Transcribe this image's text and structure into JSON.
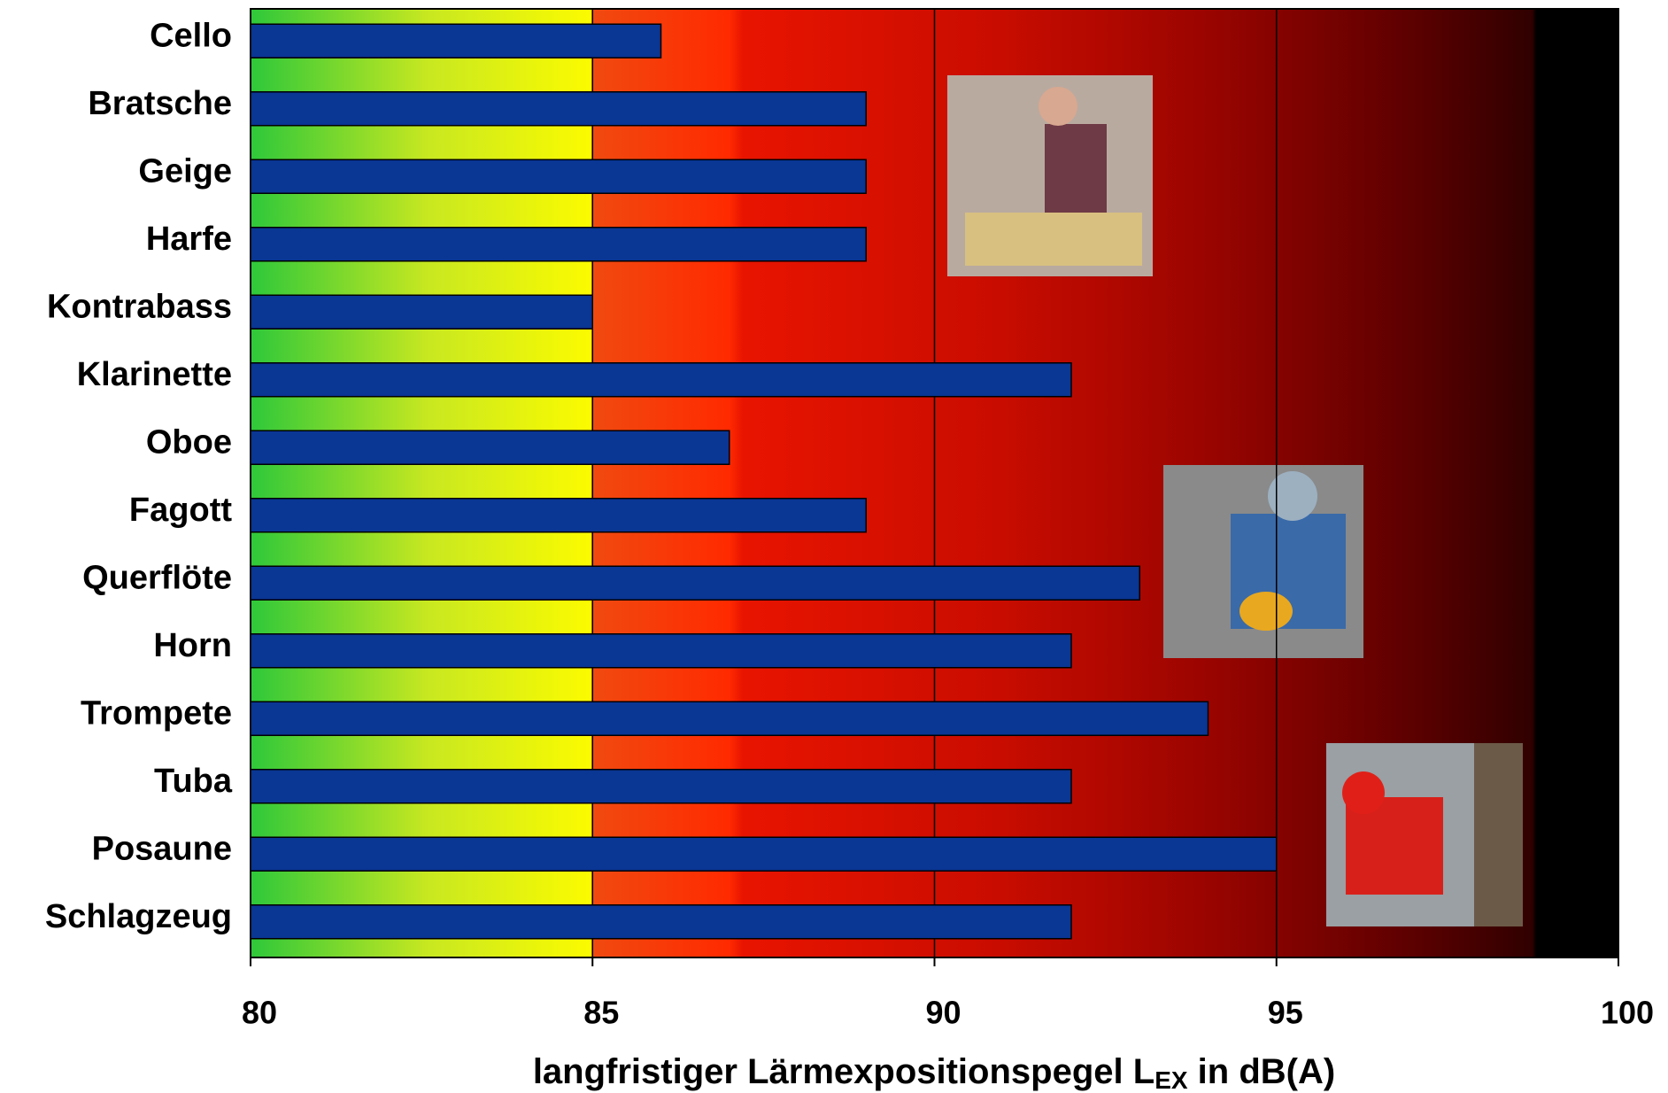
{
  "chart_data": {
    "type": "barh",
    "categories": [
      "Cello",
      "Bratsche",
      "Geige",
      "Harfe",
      "Kontrabass",
      "Klarinette",
      "Oboe",
      "Fagott",
      "Querflöte",
      "Horn",
      "Trompete",
      "Tuba",
      "Posaune",
      "Schlagzeug"
    ],
    "values": [
      86,
      89,
      89,
      89,
      85,
      92,
      87,
      89,
      93,
      92,
      94,
      92,
      95,
      92
    ],
    "color": "#0a3694",
    "xlim": [
      80,
      100
    ],
    "xticks": [
      80,
      85,
      90,
      95,
      100
    ],
    "grid": true,
    "xlabel": {
      "main": "langfristiger Lärmexpositionspegel L",
      "sub": "EX",
      "rest": " in dB(A)"
    }
  }
}
